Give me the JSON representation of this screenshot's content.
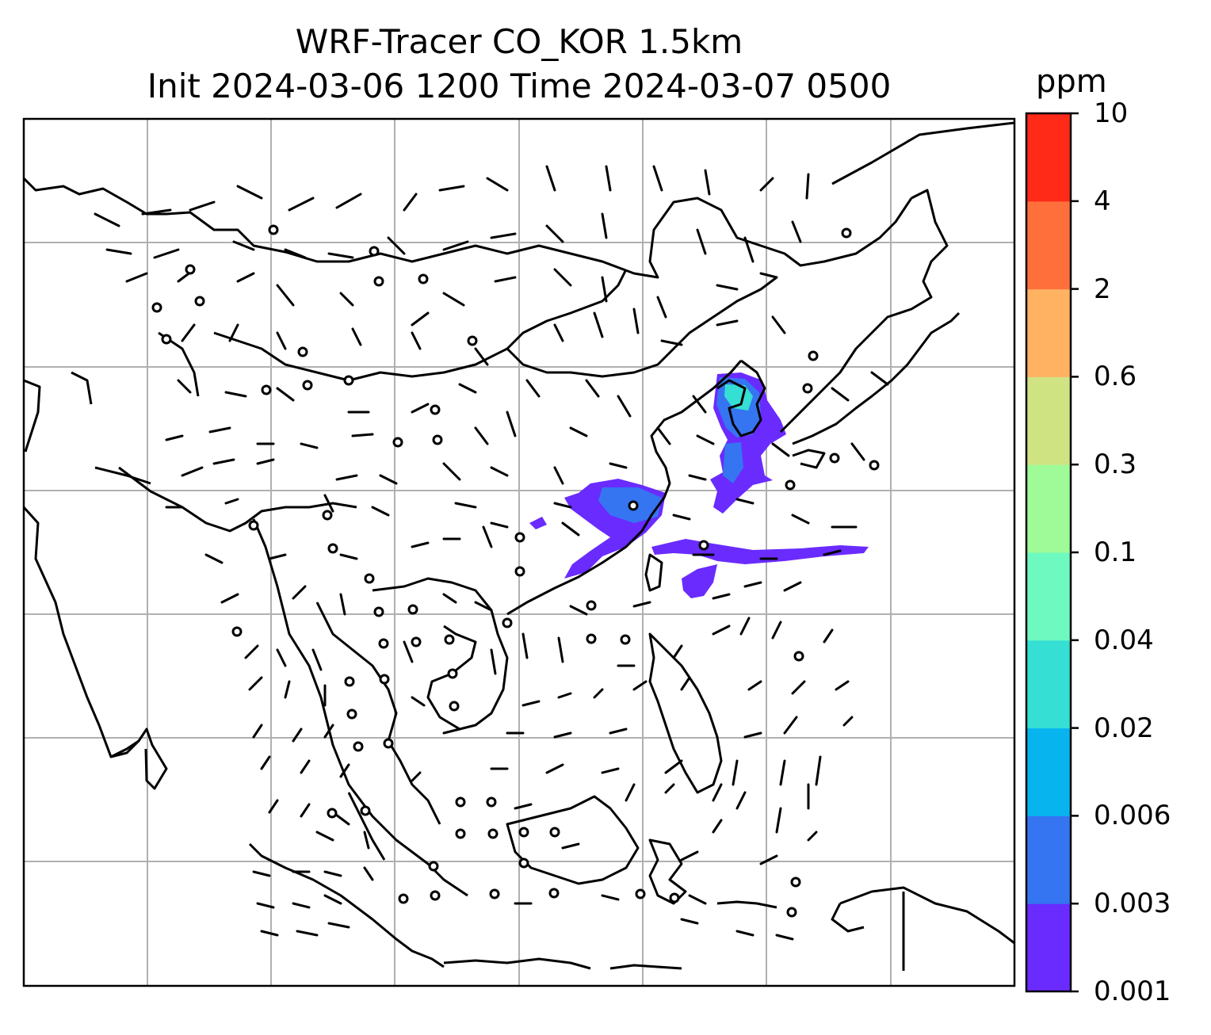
{
  "title": {
    "line1": "WRF-Tracer CO_KOR 1.5km",
    "line2": "Init 2024-03-06 1200 Time 2024-03-07 0500"
  },
  "colorbar": {
    "unit": "ppm",
    "levels": [
      "0.001",
      "0.003",
      "0.006",
      "0.02",
      "0.04",
      "0.1",
      "0.3",
      "0.6",
      "2",
      "4",
      "10"
    ],
    "colors": [
      "#6a2bff",
      "#3575f2",
      "#08b4ee",
      "#35dfd4",
      "#6ef9c0",
      "#9efb98",
      "#d0e383",
      "#feb262",
      "#ff6f3c",
      "#ff2a18"
    ]
  },
  "map": {
    "region": "East and Southeast Asia",
    "graticule": true,
    "tracer_plumes": [
      "Korea",
      "Eastern China",
      "East China Sea / Pacific"
    ],
    "overlay": "wind barbs"
  }
}
